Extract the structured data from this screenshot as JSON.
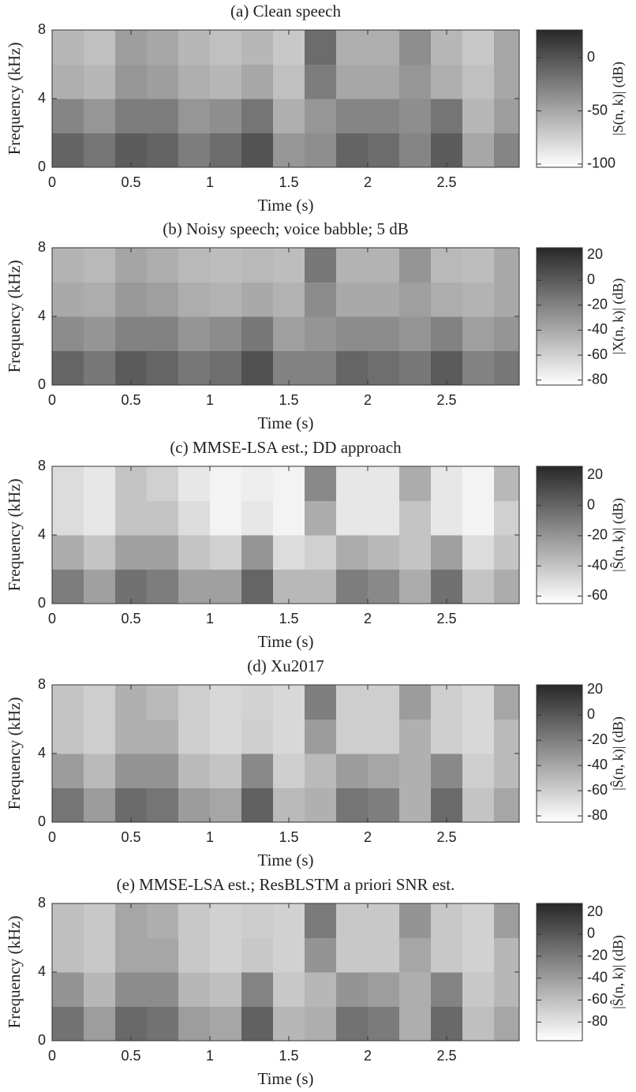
{
  "chart_data": [
    {
      "type": "heatmap",
      "title": "(a) Clean speech",
      "x_label": "Time (s)",
      "y_label": "Frequency (kHz)",
      "xlim": [
        0,
        2.96
      ],
      "xticks": [
        0,
        0.5,
        1,
        1.5,
        2,
        2.5
      ],
      "ylim": [
        0,
        8
      ],
      "yticks": [
        0,
        4,
        8
      ],
      "x_bins": [
        0,
        0.2,
        0.4,
        0.6,
        0.8,
        1.0,
        1.2,
        1.4,
        1.6,
        1.8,
        2.0,
        2.2,
        2.4,
        2.6,
        2.8,
        2.96
      ],
      "y_bins": [
        0,
        2,
        4,
        6,
        8
      ],
      "colormap": "gray_r",
      "colorbar_label": "|S(n, k)| (dB)",
      "clim": [
        -103,
        26
      ],
      "cticks": [
        -100,
        -50,
        0
      ],
      "z": [
        [
          -10,
          -20,
          -5,
          -10,
          -25,
          -15,
          0,
          -40,
          -35,
          -10,
          -15,
          -30,
          -5,
          -50,
          -30
        ],
        [
          -30,
          -40,
          -25,
          -25,
          -40,
          -35,
          -20,
          -55,
          -40,
          -30,
          -30,
          -35,
          -20,
          -60,
          -45
        ],
        [
          -55,
          -60,
          -40,
          -45,
          -55,
          -60,
          -50,
          -65,
          -25,
          -50,
          -50,
          -40,
          -55,
          -65,
          -50
        ],
        [
          -60,
          -65,
          -45,
          -50,
          -60,
          -65,
          -60,
          -70,
          -15,
          -55,
          -55,
          -35,
          -60,
          -70,
          -50
        ]
      ]
    },
    {
      "type": "heatmap",
      "title": "(b) Noisy speech; voice babble; 5 dB",
      "x_label": "Time (s)",
      "y_label": "Frequency (kHz)",
      "xlim": [
        0,
        2.96
      ],
      "xticks": [
        0,
        0.5,
        1,
        1.5,
        2,
        2.5
      ],
      "ylim": [
        0,
        8
      ],
      "yticks": [
        0,
        4,
        8
      ],
      "x_bins": [
        0,
        0.2,
        0.4,
        0.6,
        0.8,
        1.0,
        1.2,
        1.4,
        1.6,
        1.8,
        2.0,
        2.2,
        2.4,
        2.6,
        2.8,
        2.96
      ],
      "y_bins": [
        0,
        2,
        4,
        6,
        8
      ],
      "colormap": "gray_r",
      "colorbar_label": "|X(n, k)| (dB)",
      "clim": [
        -84,
        26
      ],
      "cticks": [
        -80,
        -60,
        -40,
        -20,
        0,
        20
      ],
      "z": [
        [
          -5,
          -15,
          0,
          -5,
          -15,
          -10,
          5,
          -20,
          -20,
          -5,
          -10,
          -15,
          0,
          -20,
          -15
        ],
        [
          -25,
          -30,
          -20,
          -20,
          -30,
          -25,
          -15,
          -35,
          -30,
          -25,
          -25,
          -30,
          -20,
          -35,
          -30
        ],
        [
          -40,
          -42,
          -32,
          -35,
          -42,
          -45,
          -40,
          -45,
          -25,
          -40,
          -40,
          -35,
          -42,
          -45,
          -40
        ],
        [
          -45,
          -48,
          -38,
          -42,
          -48,
          -50,
          -48,
          -50,
          -15,
          -45,
          -45,
          -30,
          -48,
          -50,
          -40
        ]
      ]
    },
    {
      "type": "heatmap",
      "title": "(c) MMSE-LSA est.; DD approach",
      "x_label": "Time (s)",
      "y_label": "Frequency (kHz)",
      "xlim": [
        0,
        2.96
      ],
      "xticks": [
        0,
        0.5,
        1,
        1.5,
        2,
        2.5
      ],
      "ylim": [
        0,
        8
      ],
      "yticks": [
        0,
        4,
        8
      ],
      "x_bins": [
        0,
        0.2,
        0.4,
        0.6,
        0.8,
        1.0,
        1.2,
        1.4,
        1.6,
        1.8,
        2.0,
        2.2,
        2.4,
        2.6,
        2.8,
        2.96
      ],
      "y_bins": [
        0,
        2,
        4,
        6,
        8
      ],
      "colormap": "gray_r",
      "colorbar_label": "|Ŝ(n, k)| (dB)",
      "clim": [
        -65,
        26
      ],
      "cticks": [
        -60,
        -40,
        -20,
        0,
        20
      ],
      "z": [
        [
          -10,
          -25,
          -5,
          -10,
          -25,
          -25,
          0,
          -35,
          -35,
          -10,
          -15,
          -30,
          -5,
          -40,
          -30
        ],
        [
          -30,
          -40,
          -25,
          -25,
          -40,
          -45,
          -20,
          -50,
          -45,
          -30,
          -35,
          -40,
          -25,
          -50,
          -40
        ],
        [
          -50,
          -55,
          -40,
          -40,
          -50,
          -60,
          -55,
          -60,
          -30,
          -55,
          -55,
          -40,
          -55,
          -60,
          -45
        ],
        [
          -50,
          -55,
          -40,
          -45,
          -55,
          -60,
          -58,
          -60,
          -15,
          -55,
          -55,
          -30,
          -55,
          -60,
          -35
        ]
      ]
    },
    {
      "type": "heatmap",
      "title": "(d) Xu2017",
      "x_label": "Time (s)",
      "y_label": "Frequency (kHz)",
      "xlim": [
        0,
        2.96
      ],
      "xticks": [
        0,
        0.5,
        1,
        1.5,
        2,
        2.5
      ],
      "ylim": [
        0,
        8
      ],
      "yticks": [
        0,
        4,
        8
      ],
      "x_bins": [
        0,
        0.2,
        0.4,
        0.6,
        0.8,
        1.0,
        1.2,
        1.4,
        1.6,
        1.8,
        2.0,
        2.2,
        2.4,
        2.6,
        2.8,
        2.96
      ],
      "y_bins": [
        0,
        2,
        4,
        6,
        8
      ],
      "colormap": "gray_r",
      "colorbar_label": "|Ŝ(n, k)| (dB)",
      "clim": [
        -85,
        24
      ],
      "cticks": [
        -80,
        -60,
        -40,
        -20,
        0,
        20
      ],
      "z": [
        [
          -15,
          -35,
          -10,
          -15,
          -35,
          -40,
          -5,
          -50,
          -45,
          -15,
          -20,
          -45,
          -10,
          -55,
          -40
        ],
        [
          -35,
          -50,
          -30,
          -30,
          -50,
          -55,
          -25,
          -60,
          -50,
          -35,
          -40,
          -45,
          -25,
          -60,
          -50
        ],
        [
          -55,
          -60,
          -45,
          -45,
          -60,
          -65,
          -60,
          -65,
          -35,
          -60,
          -60,
          -45,
          -60,
          -65,
          -50
        ],
        [
          -55,
          -60,
          -45,
          -50,
          -60,
          -65,
          -62,
          -65,
          -20,
          -60,
          -60,
          -35,
          -60,
          -65,
          -40
        ]
      ]
    },
    {
      "type": "heatmap",
      "title": "(e) MMSE-LSA est.; ResBLSTM a priori SNR est.",
      "x_label": "Time (s)",
      "y_label": "Frequency (kHz)",
      "xlim": [
        0,
        2.96
      ],
      "xticks": [
        0,
        0.5,
        1,
        1.5,
        2,
        2.5
      ],
      "ylim": [
        0,
        8
      ],
      "yticks": [
        0,
        4,
        8
      ],
      "x_bins": [
        0,
        0.2,
        0.4,
        0.6,
        0.8,
        1.0,
        1.2,
        1.4,
        1.6,
        1.8,
        2.0,
        2.2,
        2.4,
        2.6,
        2.8,
        2.96
      ],
      "y_bins": [
        0,
        2,
        4,
        6,
        8
      ],
      "colormap": "gray_r",
      "colorbar_label": "|Ŝ(n, k)| (dB)",
      "clim": [
        -97,
        28
      ],
      "cticks": [
        -80,
        -60,
        -40,
        -20,
        0,
        20
      ],
      "z": [
        [
          -15,
          -40,
          -10,
          -15,
          -40,
          -45,
          -5,
          -55,
          -50,
          -15,
          -20,
          -50,
          -10,
          -60,
          -45
        ],
        [
          -35,
          -55,
          -30,
          -30,
          -55,
          -60,
          -25,
          -65,
          -55,
          -35,
          -40,
          -50,
          -25,
          -65,
          -55
        ],
        [
          -60,
          -65,
          -45,
          -45,
          -65,
          -70,
          -65,
          -70,
          -35,
          -65,
          -65,
          -45,
          -65,
          -70,
          -55
        ],
        [
          -60,
          -65,
          -45,
          -50,
          -65,
          -70,
          -68,
          -70,
          -20,
          -65,
          -65,
          -35,
          -65,
          -70,
          -40
        ]
      ]
    }
  ]
}
